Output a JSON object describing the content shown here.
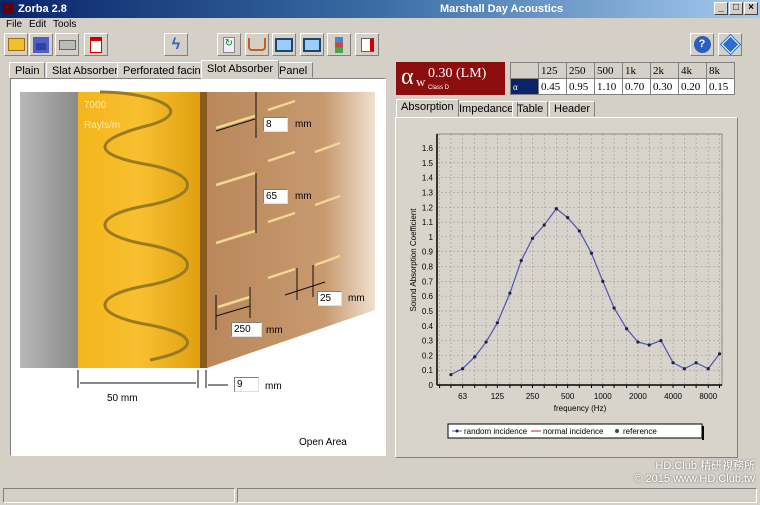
{
  "window": {
    "title": "Zorba  2.8",
    "company": "Marshall Day Acoustics",
    "minimize": "_",
    "maximize": "□",
    "close": "×"
  },
  "menu": [
    "File",
    "Edit",
    "Tools"
  ],
  "toolbar": [
    "open-folder-icon",
    "save-icon",
    "print-icon",
    "pdf-icon",
    "lightning-icon",
    "refresh-icon",
    "book-icon",
    "chart-icon",
    "chart-alt-icon",
    "tree-icon",
    "export-icon",
    "help-icon",
    "info-icon"
  ],
  "tabs": [
    "Plain",
    "Slat Absorber",
    "Perforated facing",
    "Slot Absorber",
    "Panel"
  ],
  "active_tab": "Slot Absorber",
  "drawing": {
    "flow_resistivity": "7000",
    "flow_unit": "Rayls/m",
    "slot_width": "8",
    "slot_spacing": "65",
    "slot_length": "250",
    "slot_gap": "25",
    "panel_thickness": "9",
    "cavity": "50 mm",
    "unit": "mm",
    "open_area_label": "Open Area"
  },
  "rating": {
    "symbol": "α",
    "sub": "w",
    "value": "0.30 (LM)",
    "class": "Class D"
  },
  "octave": {
    "row_label": "α",
    "bands": [
      "125",
      "250",
      "500",
      "1k",
      "2k",
      "4k",
      "8k"
    ],
    "values": [
      "0.45",
      "0.95",
      "1.10",
      "0.70",
      "0.30",
      "0.20",
      "0.15"
    ]
  },
  "subtabs": [
    "Absorption",
    "Impedance",
    "Table",
    "Header"
  ],
  "colors": {
    "accent": "#8b0d0d",
    "series": "#5a5ab4",
    "table_header": "#0a246a"
  },
  "chart_data": {
    "type": "line",
    "xlabel": "frequency (Hz)",
    "ylabel": "Sound Absorption Coefficient",
    "xscale": "log",
    "xlim": [
      38,
      10500
    ],
    "ylim": [
      0,
      1.6
    ],
    "grid": true,
    "legend": "bottom",
    "xticks": [
      "63",
      "125",
      "250",
      "500",
      "1000",
      "2000",
      "4000",
      "8000"
    ],
    "yticks": [
      "0",
      "0.1",
      "0.2",
      "0.3",
      "0.4",
      "0.5",
      "0.6",
      "0.7",
      "0.8",
      "0.9",
      "1",
      "1.1",
      "1.2",
      "1.3",
      "1.4",
      "1.5",
      "1.6"
    ],
    "series": [
      {
        "name": "random incidence",
        "color": "#5a5ab4",
        "x": [
          50,
          63,
          80,
          100,
          125,
          160,
          200,
          250,
          315,
          400,
          500,
          630,
          800,
          1000,
          1250,
          1600,
          2000,
          2500,
          3150,
          4000,
          5000,
          6300,
          8000,
          10000
        ],
        "y": [
          0.07,
          0.11,
          0.19,
          0.29,
          0.42,
          0.62,
          0.84,
          0.99,
          1.08,
          1.19,
          1.13,
          1.04,
          0.89,
          0.7,
          0.52,
          0.38,
          0.29,
          0.27,
          0.3,
          0.15,
          0.11,
          0.15,
          0.11,
          0.21
        ]
      },
      {
        "name": "normal incidence",
        "color": "#a03030",
        "x": [],
        "y": []
      },
      {
        "name": "reference",
        "color": "#206020",
        "x": [],
        "y": []
      }
    ]
  },
  "watermark": {
    "line1": "HD.Club 精研視務所",
    "line2": "© 2015  www.HD.Club.tw"
  }
}
